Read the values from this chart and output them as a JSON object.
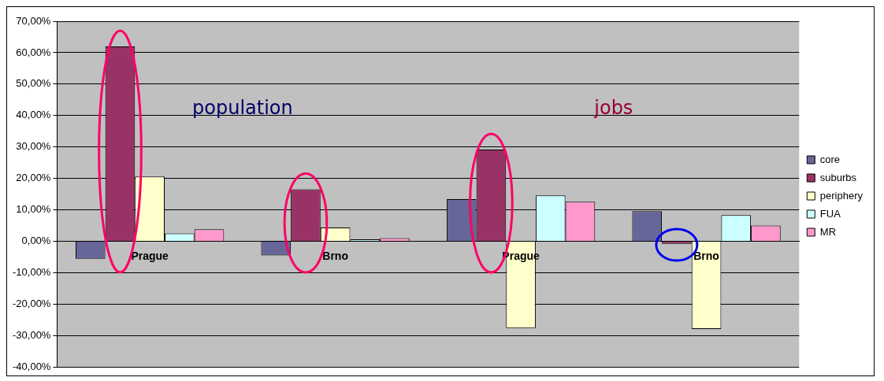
{
  "chart_data": {
    "type": "bar",
    "categories": [
      "Prague",
      "Brno",
      "Prague",
      "Brno"
    ],
    "series": [
      {
        "name": "core",
        "color": "#666699",
        "values": [
          -5.6,
          -4.5,
          13.4,
          9.6
        ]
      },
      {
        "name": "suburbs",
        "color": "#993366",
        "values": [
          62,
          16.5,
          29.2,
          -0.8
        ]
      },
      {
        "name": "periphery",
        "color": "#ffffcc",
        "values": [
          20.6,
          4.4,
          -27.6,
          -27.9
        ]
      },
      {
        "name": "FUA",
        "color": "#ccffff",
        "values": [
          2.5,
          0.6,
          14.6,
          8.3
        ]
      },
      {
        "name": "MR",
        "color": "#ff99cc",
        "values": [
          3.8,
          1,
          12.6,
          5
        ]
      }
    ],
    "annotations": [
      "population",
      "jobs"
    ],
    "ylim": [
      -40,
      70
    ],
    "yticks": [
      {
        "value": -40,
        "label": "-40,00%"
      },
      {
        "value": -30,
        "label": "-30,00%"
      },
      {
        "value": -20,
        "label": "-20,00%"
      },
      {
        "value": -10,
        "label": "-10,00%"
      },
      {
        "value": 0,
        "label": "0,00%"
      },
      {
        "value": 10,
        "label": "10,00%"
      },
      {
        "value": 20,
        "label": "20,00%"
      },
      {
        "value": 30,
        "label": "30,00%"
      },
      {
        "value": 40,
        "label": "40,00%"
      },
      {
        "value": 50,
        "label": "50,00%"
      },
      {
        "value": 60,
        "label": "60,00%"
      },
      {
        "value": 70,
        "label": "70,00%"
      }
    ],
    "grid": "y",
    "legend": "right"
  }
}
